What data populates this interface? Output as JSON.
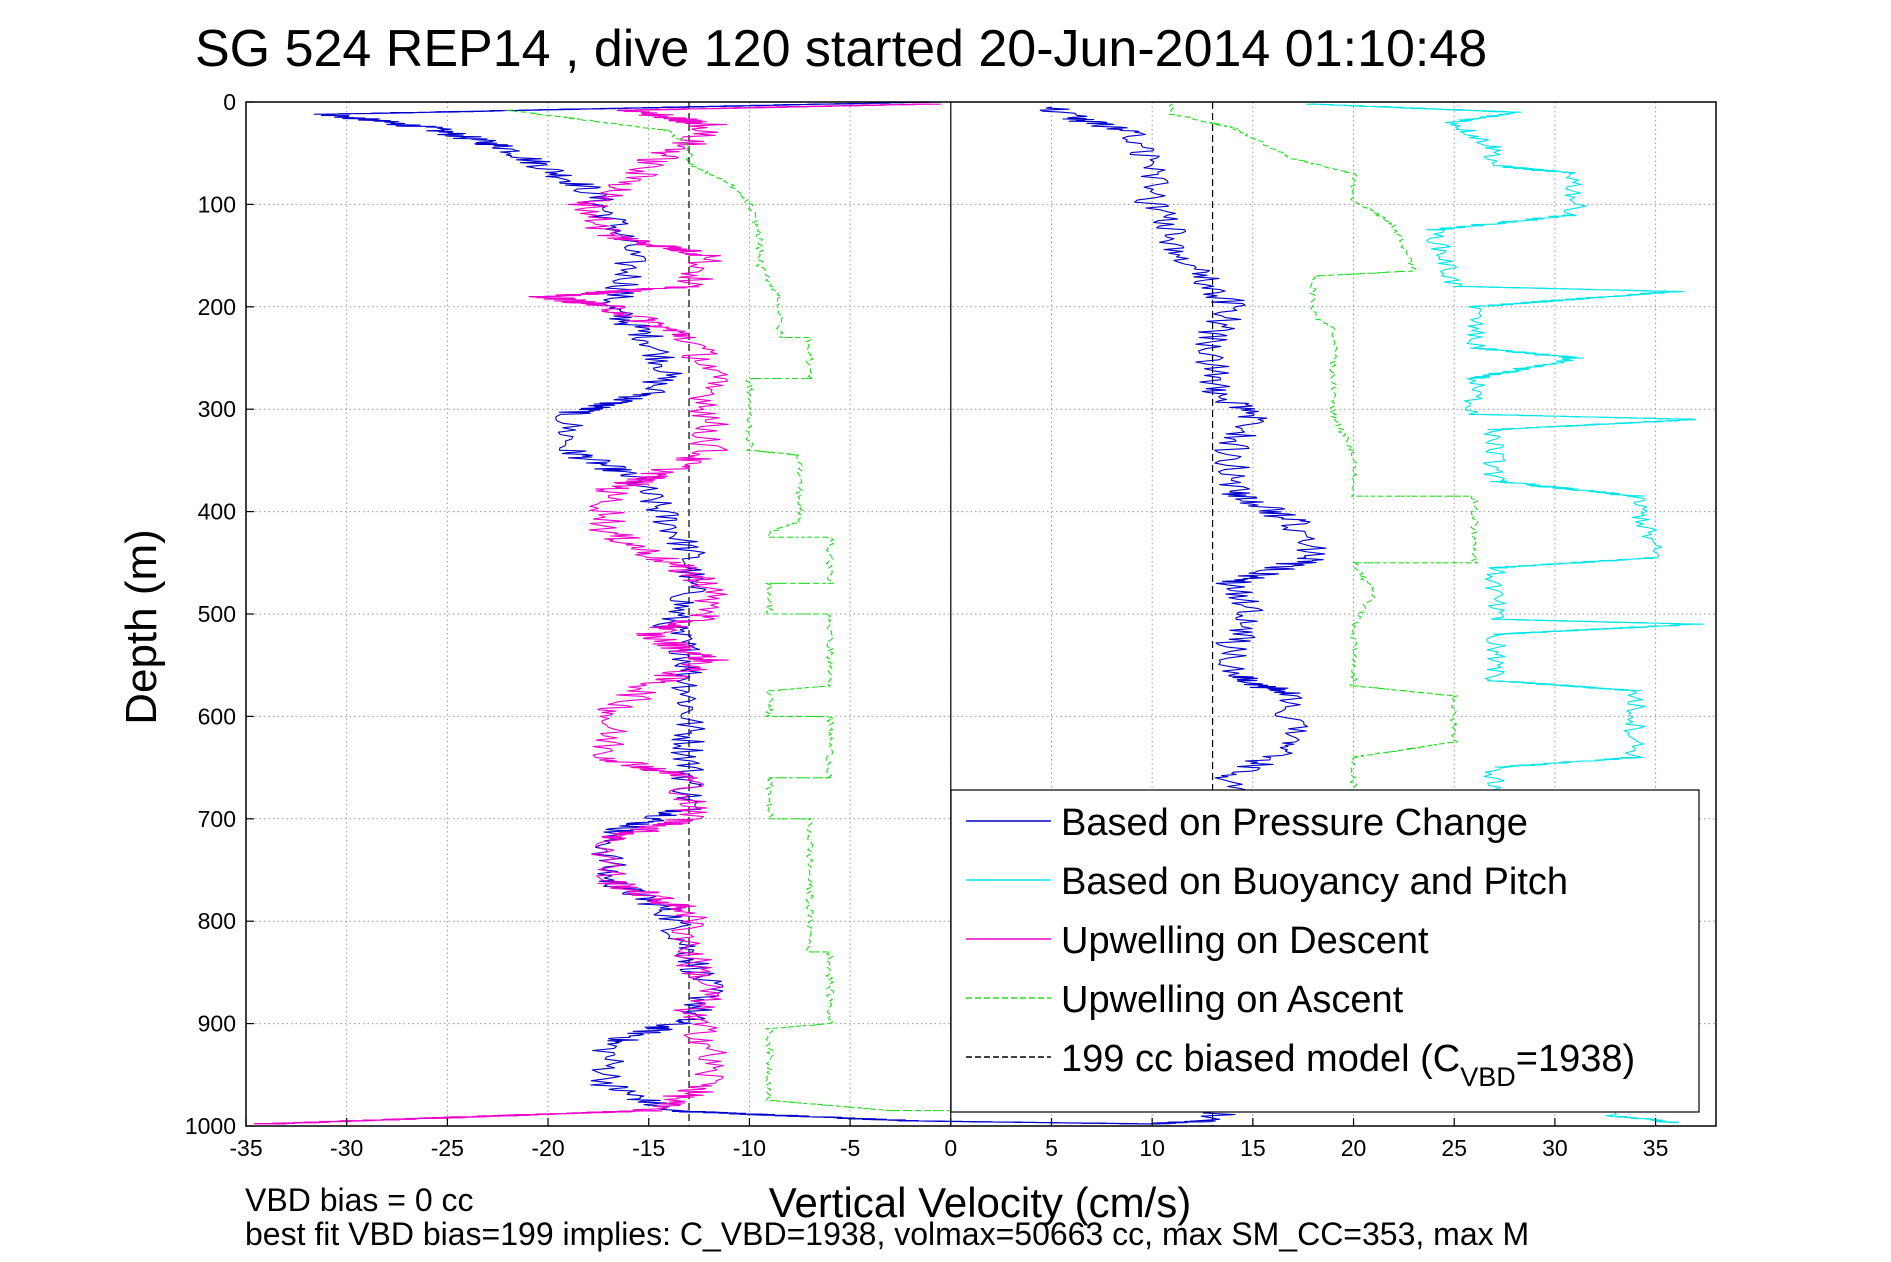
{
  "chart_data": {
    "type": "line",
    "title": "SG 524   REP14  , dive 120 started 20-Jun-2014 01:10:48",
    "xlabel": "Vertical Velocity (cm/s)",
    "ylabel": "Depth (m)",
    "xlim": [
      -35,
      38
    ],
    "ylim": [
      0,
      1000
    ],
    "y_reversed": true,
    "grid": true,
    "legend_position": "lower-right",
    "x_ticks": [
      -35,
      -30,
      -25,
      -20,
      -15,
      -10,
      -5,
      0,
      5,
      10,
      15,
      20,
      25,
      30,
      35
    ],
    "y_ticks": [
      0,
      100,
      200,
      300,
      400,
      500,
      600,
      700,
      800,
      900,
      1000
    ],
    "footer": {
      "line1": "VBD bias = 0 cc",
      "line2": "best fit VBD bias=199 implies: C_VBD=1938, volmax=50663 cc, max SM_CC=353, max M"
    },
    "legend": [
      {
        "label": "Based on Pressure Change",
        "color": "#0000cc",
        "style": "solid"
      },
      {
        "label": "Based on Buoyancy and Pitch",
        "color": "#00e5e5",
        "style": "solid"
      },
      {
        "label": "Upwelling on Descent",
        "color": "#ee00cc",
        "style": "solid"
      },
      {
        "label": "Upwelling on Ascent",
        "color": "#22dd22",
        "style": "dashed"
      },
      {
        "label": "199 cc biased model (C",
        "sub": "VBD",
        "suffix": "=1938)",
        "color": "#000000",
        "style": "dashed"
      }
    ],
    "series": [
      {
        "name": "Based on Pressure Change",
        "color": "#0000cc",
        "style": "solid",
        "noise": 0.9,
        "points": [
          [
            -1,
            0
          ],
          [
            -31,
            12
          ],
          [
            -26,
            25
          ],
          [
            -22,
            45
          ],
          [
            -20,
            65
          ],
          [
            -18,
            85
          ],
          [
            -17,
            110
          ],
          [
            -16,
            140
          ],
          [
            -16,
            175
          ],
          [
            -17,
            200
          ],
          [
            -15,
            230
          ],
          [
            -14,
            260
          ],
          [
            -15,
            285
          ],
          [
            -19,
            305
          ],
          [
            -19,
            340
          ],
          [
            -16,
            365
          ],
          [
            -15,
            385
          ],
          [
            -14,
            410
          ],
          [
            -13,
            440
          ],
          [
            -13,
            480
          ],
          [
            -14,
            510
          ],
          [
            -13,
            540
          ],
          [
            -13,
            570
          ],
          [
            -13,
            610
          ],
          [
            -13,
            650
          ],
          [
            -13,
            690
          ],
          [
            -17,
            715
          ],
          [
            -17,
            760
          ],
          [
            -14,
            790
          ],
          [
            -13,
            830
          ],
          [
            -12,
            870
          ],
          [
            -13,
            895
          ],
          [
            -17,
            920
          ],
          [
            -17,
            960
          ],
          [
            -14,
            985
          ],
          [
            -2,
            995
          ],
          [
            2,
            996
          ],
          [
            10,
            998
          ],
          [
            13,
            995
          ],
          [
            14,
            975
          ],
          [
            14,
            940
          ],
          [
            16,
            900
          ],
          [
            15,
            860
          ],
          [
            15,
            820
          ],
          [
            14,
            780
          ],
          [
            14,
            740
          ],
          [
            14,
            700
          ],
          [
            14,
            660
          ],
          [
            17,
            625
          ],
          [
            17,
            580
          ],
          [
            14,
            560
          ],
          [
            14,
            530
          ],
          [
            15,
            500
          ],
          [
            14,
            470
          ],
          [
            18,
            445
          ],
          [
            17,
            410
          ],
          [
            14,
            380
          ],
          [
            14,
            340
          ],
          [
            15,
            310
          ],
          [
            13,
            280
          ],
          [
            13,
            230
          ],
          [
            14,
            200
          ],
          [
            12,
            160
          ],
          [
            11,
            130
          ],
          [
            10,
            100
          ],
          [
            10,
            60
          ],
          [
            9,
            30
          ],
          [
            6,
            15
          ],
          [
            5,
            5
          ]
        ]
      },
      {
        "name": "Based on Buoyancy and Pitch",
        "color": "#00e5e5",
        "style": "solid",
        "noise": 0.55,
        "points": [
          [
            18,
            2
          ],
          [
            28,
            10
          ],
          [
            25,
            20
          ],
          [
            27,
            45
          ],
          [
            27,
            62
          ],
          [
            31,
            70
          ],
          [
            31,
            110
          ],
          [
            24,
            125
          ],
          [
            25,
            180
          ],
          [
            36,
            185
          ],
          [
            26,
            200
          ],
          [
            26,
            240
          ],
          [
            31,
            250
          ],
          [
            26,
            270
          ],
          [
            26,
            305
          ],
          [
            37,
            310
          ],
          [
            27,
            320
          ],
          [
            27,
            370
          ],
          [
            34,
            385
          ],
          [
            35,
            445
          ],
          [
            27,
            455
          ],
          [
            27,
            505
          ],
          [
            37,
            510
          ],
          [
            27,
            520
          ],
          [
            27,
            565
          ],
          [
            34,
            575
          ],
          [
            34,
            640
          ],
          [
            27,
            650
          ],
          [
            27,
            700
          ],
          [
            33,
            720
          ],
          [
            33,
            800
          ],
          [
            30,
            860
          ],
          [
            29,
            930
          ],
          [
            33,
            990
          ],
          [
            36,
            997
          ]
        ]
      },
      {
        "name": "Upwelling on Descent",
        "color": "#ee00cc",
        "style": "solid",
        "noise": 1.0,
        "points": [
          [
            -1,
            2
          ],
          [
            -16,
            8
          ],
          [
            -12,
            22
          ],
          [
            -13,
            40
          ],
          [
            -15,
            60
          ],
          [
            -16,
            80
          ],
          [
            -18,
            100
          ],
          [
            -17,
            130
          ],
          [
            -12,
            150
          ],
          [
            -13,
            180
          ],
          [
            -20,
            190
          ],
          [
            -17,
            200
          ],
          [
            -13,
            230
          ],
          [
            -12,
            260
          ],
          [
            -12,
            300
          ],
          [
            -12,
            340
          ],
          [
            -14,
            360
          ],
          [
            -17,
            380
          ],
          [
            -17,
            420
          ],
          [
            -15,
            440
          ],
          [
            -12,
            470
          ],
          [
            -12,
            500
          ],
          [
            -15,
            520
          ],
          [
            -12,
            545
          ],
          [
            -15,
            570
          ],
          [
            -17,
            600
          ],
          [
            -17,
            640
          ],
          [
            -13,
            660
          ],
          [
            -13,
            700
          ],
          [
            -17,
            720
          ],
          [
            -17,
            760
          ],
          [
            -13,
            790
          ],
          [
            -13,
            830
          ],
          [
            -12,
            870
          ],
          [
            -13,
            890
          ],
          [
            -12,
            920
          ],
          [
            -12,
            960
          ],
          [
            -15,
            985
          ],
          [
            -34,
            998
          ]
        ]
      },
      {
        "name": "Upwelling on Ascent",
        "color": "#22dd22",
        "style": "dashed",
        "noise": 0.18,
        "points": [
          [
            -22,
            8
          ],
          [
            -14,
            28
          ],
          [
            -13,
            45
          ],
          [
            -13,
            60
          ],
          [
            -11,
            80
          ],
          [
            -10,
            100
          ],
          [
            -9.5,
            130
          ],
          [
            -9.5,
            160
          ],
          [
            -8.5,
            190
          ],
          [
            -8.5,
            210
          ],
          [
            -8.5,
            230
          ],
          [
            -7,
            230
          ],
          [
            -7,
            270
          ],
          [
            -10,
            270
          ],
          [
            -10,
            340
          ],
          [
            -7.5,
            345
          ],
          [
            -7.5,
            410
          ],
          [
            -9,
            420
          ],
          [
            -9,
            425
          ],
          [
            -6,
            425
          ],
          [
            -6,
            470
          ],
          [
            -9,
            470
          ],
          [
            -9,
            500
          ],
          [
            -6,
            500
          ],
          [
            -6,
            570
          ],
          [
            -9,
            575
          ],
          [
            -9,
            600
          ],
          [
            -6,
            600
          ],
          [
            -6,
            660
          ],
          [
            -9,
            660
          ],
          [
            -9,
            700
          ],
          [
            -7,
            700
          ],
          [
            -7,
            775
          ],
          [
            -7,
            830
          ],
          [
            -6,
            830
          ],
          [
            -6,
            900
          ],
          [
            -9,
            905
          ],
          [
            -9,
            975
          ],
          [
            -6,
            980
          ],
          [
            -3,
            985
          ],
          [
            13,
            985
          ],
          [
            20,
            978
          ],
          [
            20,
            950
          ],
          [
            20,
            910
          ],
          [
            19,
            870
          ],
          [
            19,
            830
          ],
          [
            19,
            760
          ],
          [
            20,
            700
          ],
          [
            20,
            660
          ],
          [
            20,
            640
          ],
          [
            25,
            625
          ],
          [
            25,
            580
          ],
          [
            20,
            570
          ],
          [
            20,
            510
          ],
          [
            21,
            480
          ],
          [
            20,
            450
          ],
          [
            26,
            450
          ],
          [
            26,
            385
          ],
          [
            20,
            385
          ],
          [
            20,
            345
          ],
          [
            19,
            305
          ],
          [
            19,
            280
          ],
          [
            19,
            255
          ],
          [
            19,
            220
          ],
          [
            18,
            210
          ],
          [
            18,
            170
          ],
          [
            23,
            165
          ],
          [
            22,
            120
          ],
          [
            20,
            95
          ],
          [
            20,
            70
          ],
          [
            17,
            55
          ],
          [
            14,
            25
          ],
          [
            11,
            12
          ],
          [
            11,
            2
          ]
        ]
      }
    ],
    "model_line": {
      "name": "199 cc biased model",
      "x_descent": -13,
      "x_ascent": 13,
      "color": "#000000",
      "style": "dashed"
    },
    "zero_line_x": 0
  }
}
